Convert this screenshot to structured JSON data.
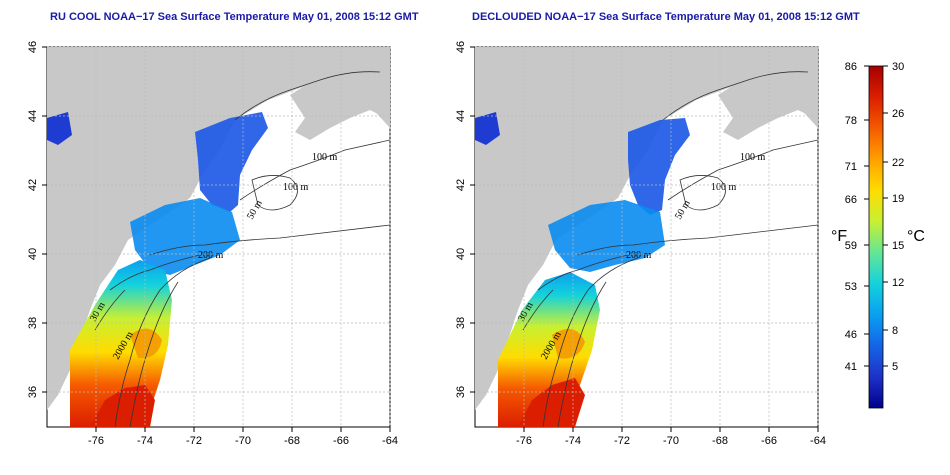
{
  "panels": [
    {
      "id": "left",
      "title": "RU COOL NOAA−17 Sea Surface Temperature May 01, 2008 15:12 GMT"
    },
    {
      "id": "right",
      "title": "DECLOUDED NOAA−17 Sea Surface Temperature May 01, 2008 15:12 GMT"
    }
  ],
  "axes": {
    "x_ticks": [
      "-76",
      "-74",
      "-72",
      "-70",
      "-68",
      "-66",
      "-64"
    ],
    "y_ticks": [
      "36",
      "38",
      "40",
      "42",
      "44",
      "46"
    ]
  },
  "contour_labels": [
    "100 m",
    "100 m",
    "50 m",
    "200 m",
    "30 m",
    "2000 m"
  ],
  "colorbar": {
    "f_label": "°F",
    "c_label": "°C",
    "f_ticks": [
      "86",
      "78",
      "71",
      "66",
      "59",
      "53",
      "46",
      "41"
    ],
    "c_ticks": [
      "30",
      "26",
      "22",
      "19",
      "15",
      "12",
      "8",
      "5"
    ],
    "colors": [
      "#a50000",
      "#dc1e00",
      "#f55a00",
      "#ffa000",
      "#ffdc00",
      "#c8f032",
      "#64e696",
      "#14d2dc",
      "#0aa0f0",
      "#1464e6",
      "#1e32c8",
      "#00008c"
    ]
  },
  "colors": {
    "land": "#c8c8c8",
    "ocean": "#ffffff",
    "title": "#1a1aa8"
  }
}
